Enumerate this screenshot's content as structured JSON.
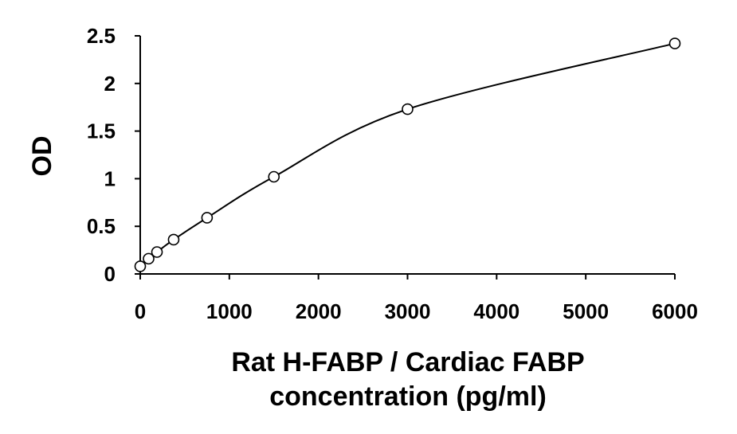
{
  "chart_data": {
    "type": "scatter",
    "title": "",
    "xlabel_lines": [
      "Rat H-FABP / Cardiac FABP",
      "concentration (pg/ml)"
    ],
    "ylabel": "OD",
    "xlim": [
      0,
      6000
    ],
    "ylim": [
      0,
      2.5
    ],
    "x_ticks": [
      0,
      1000,
      2000,
      3000,
      4000,
      5000,
      6000
    ],
    "x_tick_labels": [
      "0",
      "1000",
      "2000",
      "3000",
      "4000",
      "5000",
      "6000"
    ],
    "y_ticks": [
      0,
      0.5,
      1,
      1.5,
      2,
      2.5
    ],
    "y_tick_labels": [
      "0",
      "0.5",
      "1",
      "1.5",
      "2",
      "2.5"
    ],
    "grid": false,
    "legend": "none",
    "series": [
      {
        "marker": "open-circle",
        "fit_line": "smooth-curve",
        "points": [
          {
            "x": 0,
            "y": 0.08
          },
          {
            "x": 94,
            "y": 0.16
          },
          {
            "x": 188,
            "y": 0.23
          },
          {
            "x": 375,
            "y": 0.36
          },
          {
            "x": 750,
            "y": 0.59
          },
          {
            "x": 1500,
            "y": 1.02
          },
          {
            "x": 3000,
            "y": 1.73
          },
          {
            "x": 6000,
            "y": 2.42
          }
        ]
      }
    ],
    "colors": {
      "line": "#000000",
      "marker_fill": "#ffffff",
      "text": "#000000"
    }
  }
}
